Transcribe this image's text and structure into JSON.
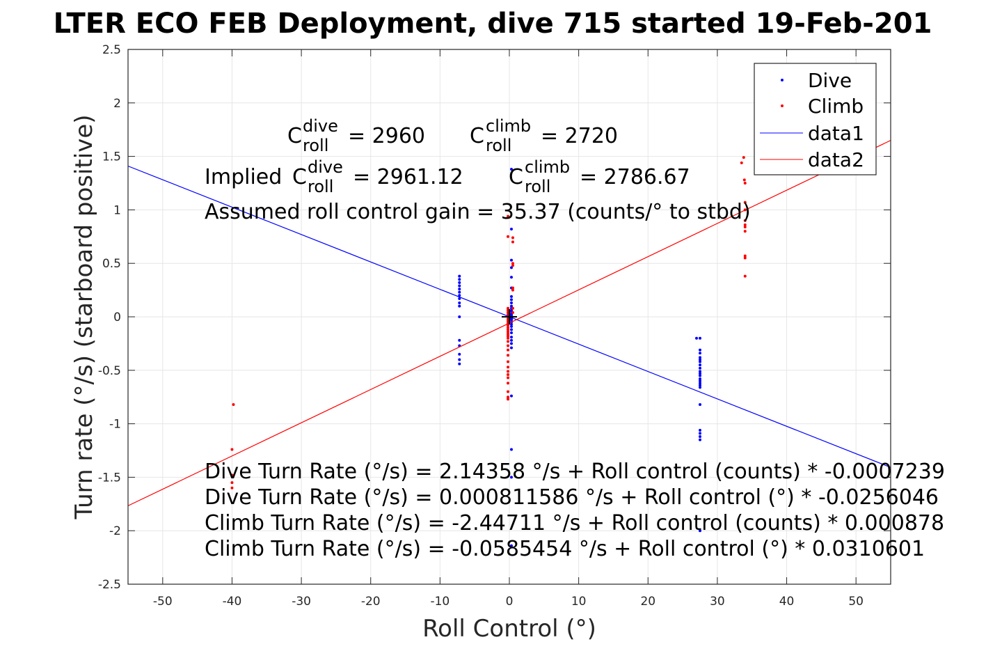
{
  "chart_data": {
    "type": "scatter",
    "title": "LTER ECO FEB Deployment, dive 715 started 19-Feb-201",
    "xlabel": "Roll Control (°)",
    "ylabel": "Turn rate (°/s) (starboard positive)",
    "xlim": [
      -55,
      55
    ],
    "ylim": [
      -2.5,
      2.5
    ],
    "xticks": [
      -50,
      -40,
      -30,
      -20,
      -10,
      0,
      10,
      20,
      30,
      40,
      50
    ],
    "yticks": [
      2.5,
      2,
      1.5,
      1,
      0.5,
      0,
      -0.5,
      -1,
      -1.5,
      -2,
      -2.5
    ],
    "xtick_labels": [
      "-50",
      "-40",
      "-30",
      "-20",
      "-10",
      "0",
      "10",
      "20",
      "30",
      "40",
      "50"
    ],
    "ytick_labels": [
      "2.5",
      "2",
      "1.5",
      "1",
      "0.5",
      "0",
      "-0.5",
      "-1",
      "-1.5",
      "-2",
      "-2.5"
    ],
    "grid": true,
    "legend_position": "top-right",
    "colors": {
      "dive": "#0000ff",
      "climb": "#ff0000",
      "axes": "#262626",
      "grid": "#e6e6e6"
    },
    "series": [
      {
        "name": "Dive",
        "kind": "points",
        "color": "#0000ff",
        "x": [
          -7.2,
          -7.2,
          -7.2,
          -7.2,
          -7.2,
          -7.2,
          -7.2,
          -7.2,
          -7.2,
          -7.2,
          -7.2,
          -7.2,
          -7.2,
          -7.2,
          -7.2,
          -7.2,
          0.3,
          0.3,
          0.3,
          0.3,
          0.3,
          0.3,
          0.3,
          0.3,
          0.3,
          0.3,
          0.3,
          0.3,
          0.3,
          0.3,
          0.3,
          0.3,
          0.3,
          0.3,
          0.3,
          0.3,
          0.3,
          0.3,
          0.3,
          0.3,
          0.3,
          0.3,
          0.3,
          0.3,
          0.3,
          0.3,
          0.3,
          0.3,
          0.3,
          27.5,
          27.5,
          27.5,
          27.5,
          27.5,
          27.5,
          27.5,
          27.5,
          27.5,
          27.5,
          27.5,
          27.5,
          27.5,
          27.5,
          27.5,
          27.5,
          27.5,
          27.5,
          27.5,
          27.5,
          27.5,
          27.5,
          27
        ],
        "y": [
          0.38,
          0.35,
          0.32,
          0.29,
          0.26,
          0.23,
          0.2,
          0.17,
          0.13,
          0.1,
          0.0,
          -0.22,
          -0.27,
          -0.35,
          -0.4,
          -0.44,
          1.38,
          0.82,
          0.53,
          0.46,
          0.37,
          0.27,
          0.19,
          0.16,
          0.13,
          0.1,
          0.08,
          0.06,
          0.05,
          0.03,
          0.02,
          0.01,
          0.0,
          -0.01,
          -0.02,
          -0.03,
          -0.05,
          -0.07,
          -0.09,
          -0.12,
          -0.15,
          -0.19,
          -0.22,
          -0.25,
          -0.29,
          -0.74,
          -1.24,
          -1.5,
          -2.14,
          -0.31,
          -0.34,
          -0.38,
          -0.4,
          -0.42,
          -0.45,
          -0.48,
          -0.51,
          -0.53,
          -0.55,
          -0.58,
          -0.6,
          -0.62,
          -0.64,
          -0.66,
          -0.82,
          -1.06,
          -1.09,
          -1.12,
          -1.15,
          -2.0,
          -0.2,
          -0.2
        ]
      },
      {
        "name": "Climb",
        "kind": "points",
        "color": "#ff0000",
        "x": [
          -39.8,
          -40,
          -40,
          -40,
          -40,
          -0.2,
          -0.2,
          -0.2,
          -0.2,
          -0.2,
          -0.2,
          -0.2,
          -0.2,
          -0.2,
          -0.2,
          -0.2,
          -0.2,
          -0.2,
          -0.2,
          -0.2,
          -0.2,
          -0.2,
          -0.2,
          -0.2,
          -0.2,
          -0.2,
          -0.2,
          -0.2,
          -0.2,
          -0.2,
          -0.2,
          -0.2,
          -0.2,
          -0.2,
          -0.2,
          0.5,
          0.5,
          0.5,
          0.5,
          0.5,
          0.5,
          0.5,
          0.5,
          33.5,
          33.8,
          33.9,
          34,
          34,
          34,
          34,
          34,
          34,
          34,
          34,
          34,
          34
        ],
        "y": [
          -0.82,
          -1.24,
          -1.48,
          -1.55,
          -1.6,
          0.94,
          0.75,
          0.08,
          0.06,
          0.04,
          0.02,
          0.0,
          -0.02,
          -0.04,
          -0.06,
          -0.08,
          -0.1,
          -0.12,
          -0.14,
          -0.16,
          -0.18,
          -0.2,
          -0.23,
          -0.27,
          -0.31,
          -0.36,
          -0.42,
          -0.47,
          -0.51,
          -0.54,
          -0.57,
          -0.62,
          -0.7,
          -0.75,
          -0.77,
          0.74,
          0.7,
          0.5,
          0.48,
          0.27,
          0.25,
          0.08,
          0.04,
          1.44,
          1.49,
          1.28,
          1.25,
          1.07,
          1.0,
          0.9,
          0.86,
          0.84,
          0.8,
          0.57,
          0.55,
          0.38
        ]
      },
      {
        "name": "data1",
        "kind": "line",
        "color": "#0000ff",
        "x": [
          -55,
          55
        ],
        "y": [
          1.4095,
          -1.4079
        ]
      },
      {
        "name": "data2",
        "kind": "line",
        "color": "#ff0000",
        "x": [
          -55,
          55
        ],
        "y": [
          -1.7669,
          1.6497
        ]
      }
    ],
    "annotations": {
      "c_roll_dive": {
        "base": "C",
        "sup": "dive",
        "sub": "roll",
        "value": "= 2960"
      },
      "c_roll_climb": {
        "base": "C",
        "sup": "climb",
        "sub": "roll",
        "value": "= 2720"
      },
      "implied_prefix": "Implied",
      "implied_dive": {
        "base": "C",
        "sup": "dive",
        "sub": "roll",
        "value": "= 2961.12"
      },
      "implied_climb": {
        "base": "C",
        "sup": "climb",
        "sub": "roll",
        "value": "= 2786.67"
      },
      "gain": "Assumed roll control gain = 35.37 (counts/° to stbd)",
      "eq1": "Dive Turn Rate (°/s) = 2.14358 °/s + Roll control (counts) * -0.0007239",
      "eq2": "Dive Turn Rate (°/s) = 0.000811586 °/s + Roll control (°) * -0.0256046",
      "eq3": "Climb Turn Rate (°/s) = -2.44711 °/s + Roll control (counts) * 0.000878",
      "eq4": "Climb Turn Rate (°/s) = -0.0585454 °/s + Roll control (°) * 0.0310601"
    },
    "center_marker": {
      "x": 0,
      "y": 0,
      "symbol": "+"
    }
  }
}
